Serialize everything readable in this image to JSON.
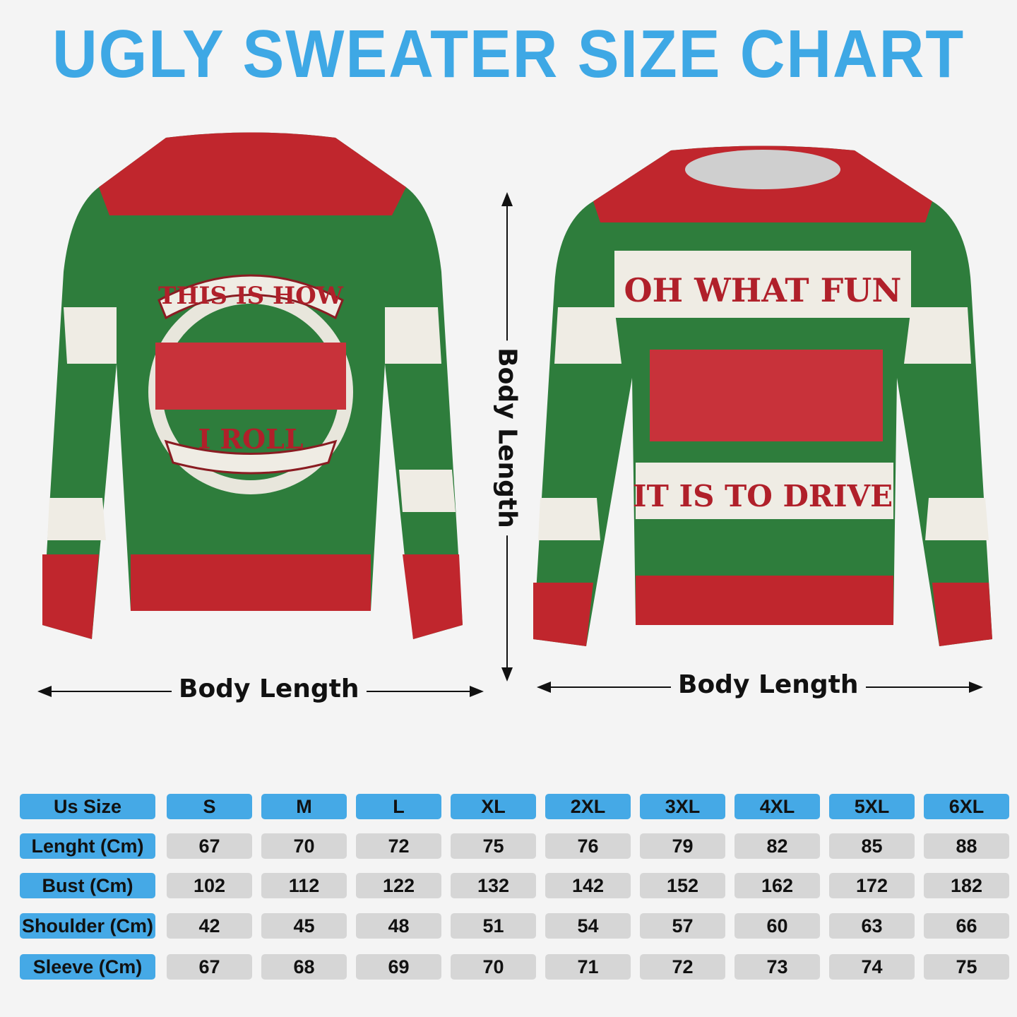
{
  "title": "UGLY SWEATER SIZE CHART",
  "colors": {
    "title": "#3ea8e5",
    "header_cell": "#45a9e6",
    "value_cell": "#d6d6d6",
    "sweater_red": "#c0262d",
    "sweater_green": "#2e7d3c",
    "sweater_cream": "#efece4"
  },
  "back_sweater": {
    "text_top": "THIS IS HOW",
    "text_bottom": "I ROLL"
  },
  "front_sweater": {
    "text_top": "OH WHAT FUN",
    "text_bottom": "IT IS TO DRIVE"
  },
  "measure_labels": {
    "vertical": "Body Length",
    "left_horizontal": "Body Length",
    "right_horizontal": "Body Length"
  },
  "table": {
    "header": {
      "label": "Us Size",
      "sizes": [
        "S",
        "M",
        "L",
        "XL",
        "2XL",
        "3XL",
        "4XL",
        "5XL",
        "6XL"
      ]
    },
    "rows": [
      {
        "label": "Lenght (Cm)",
        "values": [
          "67",
          "70",
          "72",
          "75",
          "76",
          "79",
          "82",
          "85",
          "88"
        ]
      },
      {
        "label": "Bust (Cm)",
        "values": [
          "102",
          "112",
          "122",
          "132",
          "142",
          "152",
          "162",
          "172",
          "182"
        ]
      },
      {
        "label": "Shoulder (Cm)",
        "values": [
          "42",
          "45",
          "48",
          "51",
          "54",
          "57",
          "60",
          "63",
          "66"
        ]
      },
      {
        "label": "Sleeve (Cm)",
        "values": [
          "67",
          "68",
          "69",
          "70",
          "71",
          "72",
          "73",
          "74",
          "75"
        ]
      }
    ]
  }
}
